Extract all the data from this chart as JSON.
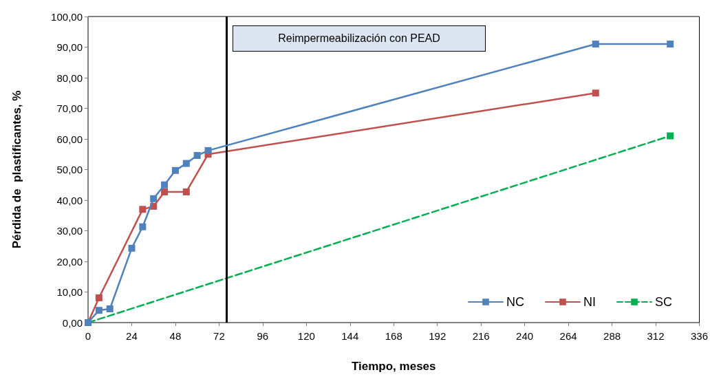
{
  "chart_data": {
    "type": "line",
    "xlabel": "Tiempo, meses",
    "ylabel": "Pérdida de  plastificantes, %",
    "xlim": [
      0,
      336
    ],
    "xticks": [
      0,
      24,
      48,
      72,
      96,
      120,
      144,
      168,
      192,
      216,
      240,
      264,
      288,
      312,
      336
    ],
    "ylim": [
      0,
      100
    ],
    "yticks": [
      {
        "value": 0,
        "label": "0,00"
      },
      {
        "value": 10,
        "label": "10,00"
      },
      {
        "value": 20,
        "label": "20,00"
      },
      {
        "value": 30,
        "label": "30,00"
      },
      {
        "value": 40,
        "label": "40,00"
      },
      {
        "value": 50,
        "label": "50,00"
      },
      {
        "value": 60,
        "label": "60,00"
      },
      {
        "value": 70,
        "label": "70,00"
      },
      {
        "value": 80,
        "label": "80,00"
      },
      {
        "value": 90,
        "label": "90,00"
      },
      {
        "value": 100,
        "label": "100,00"
      }
    ],
    "grid": false,
    "legend": "bottom right",
    "marker": "square",
    "series": [
      {
        "name": "NC",
        "color": "#4f81bd",
        "line_style": "solid",
        "x": [
          0,
          6,
          12,
          24,
          30,
          36,
          42,
          48,
          54,
          60,
          66,
          279,
          320
        ],
        "values": [
          0,
          4.0,
          4.5,
          24.3,
          31.3,
          40.5,
          45.0,
          49.7,
          52.0,
          54.6,
          56.2,
          91.0,
          91.0
        ]
      },
      {
        "name": "NI",
        "color": "#c0504d",
        "line_style": "solid",
        "x": [
          0,
          6,
          30,
          36,
          42,
          54,
          66,
          279
        ],
        "values": [
          0,
          8.1,
          37.0,
          38.0,
          42.7,
          42.7,
          55.0,
          75.0
        ]
      },
      {
        "name": "SC",
        "color": "#00b050",
        "line_style": "dashed",
        "x": [
          0,
          320
        ],
        "values": [
          0,
          61.0
        ]
      }
    ],
    "ref_lines": [
      {
        "axis": "x",
        "value": 76,
        "color": "#000000",
        "line_style": "solid"
      }
    ],
    "annotations": [
      "Reimpermeabilización con PEAD"
    ]
  }
}
